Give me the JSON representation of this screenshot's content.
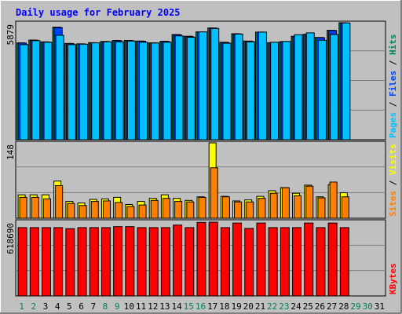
{
  "title": "Daily usage for February 2025",
  "colors": {
    "background": "#C0C0C0",
    "border_light": "#FFFFFF",
    "border_dark": "#808080",
    "title": "#0000FF",
    "hits": "#00805C",
    "files": "#0040FF",
    "pages": "#00C0FF",
    "visits": "#FFFF00",
    "sites": "#FF8000",
    "kbytes": "#FF0000",
    "weekend_label": "#00805C",
    "weekday_label": "#000000",
    "grid": "#808080",
    "outline": "#000000"
  },
  "chart_data": [
    {
      "type": "bar",
      "name": "hits-files-pages",
      "ymax_label": "5879",
      "ylim": [
        0,
        5879
      ],
      "series": [
        {
          "name": "Hits",
          "values": [
            4870,
            5010,
            4920,
            5660,
            4840,
            4820,
            4880,
            4940,
            4990,
            4990,
            4960,
            4870,
            4950,
            5290,
            5200,
            5420,
            5620,
            4900,
            5330,
            4960,
            5410,
            4880,
            4930,
            5200,
            5300,
            5140,
            5500,
            5879
          ]
        },
        {
          "name": "Files",
          "values": [
            4860,
            5000,
            4910,
            5640,
            4830,
            4810,
            4870,
            4930,
            4980,
            4980,
            4950,
            4860,
            4940,
            5280,
            5190,
            5410,
            5610,
            4890,
            5320,
            4950,
            5400,
            4870,
            4920,
            5190,
            5290,
            5130,
            5490,
            5860
          ]
        },
        {
          "name": "Pages",
          "values": [
            4780,
            4980,
            4900,
            5250,
            4780,
            4800,
            4870,
            4920,
            4920,
            4960,
            4900,
            4860,
            4900,
            5220,
            5150,
            5420,
            5590,
            4850,
            5310,
            4920,
            5410,
            4900,
            4940,
            5280,
            5370,
            5000,
            5290,
            5870
          ]
        }
      ],
      "right_label_parts": [
        "Pages",
        " / ",
        "Files",
        " / ",
        "Hits"
      ]
    },
    {
      "type": "bar",
      "name": "visits-sites",
      "ymax_label": "148",
      "ylim": [
        0,
        148
      ],
      "series": [
        {
          "name": "Visits",
          "values": [
            46,
            46,
            46,
            73,
            33,
            30,
            37,
            38,
            41,
            27,
            33,
            39,
            46,
            39,
            35,
            42,
            148,
            43,
            34,
            36,
            43,
            54,
            60,
            49,
            65,
            42,
            66,
            50
          ]
        },
        {
          "name": "Sites",
          "values": [
            41,
            41,
            38,
            64,
            29,
            25,
            33,
            34,
            31,
            23,
            26,
            35,
            39,
            33,
            32,
            41,
            99,
            42,
            32,
            32,
            39,
            49,
            60,
            44,
            63,
            40,
            71,
            42
          ]
        }
      ],
      "right_label_parts": [
        "Sites",
        " / ",
        "Visits"
      ]
    },
    {
      "type": "bar",
      "name": "kbytes",
      "ymax_label": "618690",
      "ylim": [
        0,
        618690
      ],
      "series": [
        {
          "name": "KBytes",
          "values": [
            567000,
            567000,
            567000,
            567000,
            558000,
            567000,
            567000,
            567000,
            575000,
            575000,
            567000,
            567000,
            567000,
            588000,
            567000,
            610000,
            612000,
            567000,
            605000,
            560000,
            605000,
            567000,
            567000,
            567000,
            605000,
            567000,
            605000,
            567000
          ]
        }
      ],
      "right_label_parts": [
        "KBytes"
      ]
    }
  ],
  "days": [
    "1",
    "2",
    "3",
    "4",
    "5",
    "6",
    "7",
    "8",
    "9",
    "10",
    "11",
    "12",
    "13",
    "14",
    "15",
    "16",
    "17",
    "18",
    "19",
    "20",
    "21",
    "22",
    "23",
    "24",
    "25",
    "26",
    "27",
    "28",
    "29",
    "30",
    "31"
  ],
  "weekend_days": [
    "1",
    "2",
    "8",
    "9",
    "15",
    "16",
    "22",
    "23",
    "29",
    "30"
  ]
}
